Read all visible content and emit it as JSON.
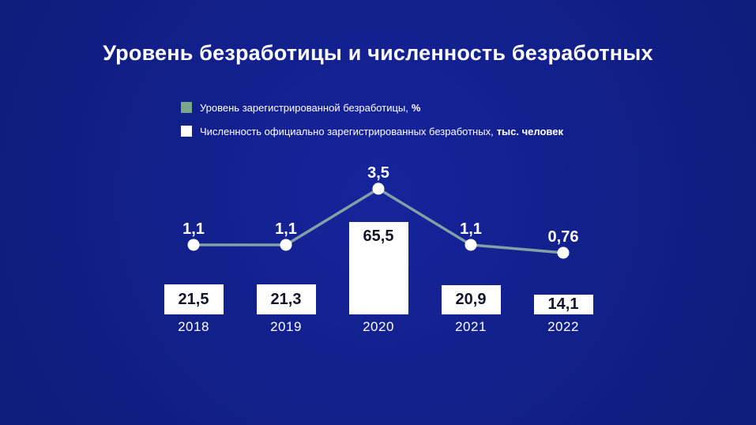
{
  "title": "Уровень безработицы и численность безработных",
  "colors": {
    "background_center": "#16249c",
    "background_edge": "#0c1a70",
    "title_text": "#ffffff",
    "legend_text": "#ffffff",
    "line": "#82a0a6",
    "line_point": "#ffffff",
    "line_value_text": "#ffffff",
    "bar_fill": "#ffffff",
    "bar_value_text": "#13152c",
    "year_text": "#ffffff",
    "rate_swatch": "#7ba689",
    "count_swatch": "#ffffff"
  },
  "legend": [
    {
      "label": "Уровень зарегистрированной безработицы,",
      "bold_suffix": "%",
      "swatch_color": "#7ba689",
      "swatch_icon": "rate-swatch-square"
    },
    {
      "label": "Численность официально зарегистрированных безработных,",
      "bold_suffix": "тыс. человек",
      "swatch_color": "#ffffff",
      "swatch_icon": "count-swatch-square"
    }
  ],
  "chart_data": {
    "type": "combo-line-bar",
    "categories": [
      "2018",
      "2019",
      "2020",
      "2021",
      "2022"
    ],
    "series": [
      {
        "name": "Уровень зарегистрированной безработицы, %",
        "type": "line",
        "values": [
          1.1,
          1.1,
          3.5,
          1.1,
          0.76
        ],
        "labels": [
          "1,1",
          "1,1",
          "3,5",
          "1,1",
          "0,76"
        ],
        "color": "#82a0a6",
        "point_color": "#ffffff"
      },
      {
        "name": "Численность официально зарегистрированных безработных, тыс. человек",
        "type": "bar",
        "values": [
          21.5,
          21.3,
          65.5,
          20.9,
          14.1
        ],
        "labels": [
          "21,5",
          "21,3",
          "65,5",
          "20,9",
          "14,1"
        ],
        "color": "#ffffff"
      }
    ],
    "title": "Уровень безработицы и численность безработных",
    "xlabel": "",
    "ylabel": "",
    "grid": false,
    "axes_visible": false,
    "legend_position": "top-left",
    "value_labels_shown": true
  }
}
